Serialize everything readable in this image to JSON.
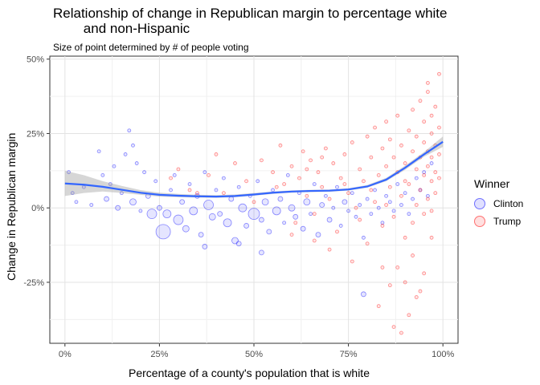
{
  "chart_data": {
    "type": "scatter",
    "title": "Relationship of change in Republican margin to percentage white\n        and non-Hispanic",
    "subtitle": "Size of point determined by # of people voting",
    "xlabel": "Percentage of a county's population that is white",
    "ylabel": "Change in Republican margin",
    "xlim": [
      -0.04,
      1.04
    ],
    "ylim": [
      -0.455,
      0.51
    ],
    "x_ticks": [
      0,
      0.25,
      0.5,
      0.75,
      1.0
    ],
    "x_tick_labels": [
      "0%",
      "25%",
      "50%",
      "75%",
      "100%"
    ],
    "y_ticks": [
      -0.25,
      0,
      0.25,
      0.5
    ],
    "y_tick_labels": [
      "-25%",
      "0%",
      "25%",
      "50%"
    ],
    "grid": true,
    "legend": {
      "title": "Winner",
      "position": "right",
      "entries": [
        {
          "name": "Clinton",
          "color": "#0000ff"
        },
        {
          "name": "Trump",
          "color": "#ff0000"
        }
      ]
    },
    "series": [
      {
        "name": "Clinton",
        "color": "#0000ff",
        "points": [
          [
            0.01,
            0.12,
            2
          ],
          [
            0.02,
            0.05,
            2
          ],
          [
            0.03,
            0.02,
            2
          ],
          [
            0.05,
            0.07,
            2
          ],
          [
            0.07,
            0.01,
            2
          ],
          [
            0.09,
            0.19,
            2
          ],
          [
            0.1,
            0.11,
            2
          ],
          [
            0.11,
            0.03,
            3
          ],
          [
            0.12,
            0.08,
            2
          ],
          [
            0.13,
            0.14,
            2
          ],
          [
            0.14,
            0.0,
            3
          ],
          [
            0.15,
            0.05,
            2
          ],
          [
            0.16,
            0.18,
            2
          ],
          [
            0.17,
            0.26,
            2
          ],
          [
            0.18,
            0.21,
            2
          ],
          [
            0.18,
            0.02,
            4
          ],
          [
            0.19,
            0.15,
            2
          ],
          [
            0.2,
            -0.01,
            2
          ],
          [
            0.21,
            0.12,
            2
          ],
          [
            0.22,
            0.04,
            3
          ],
          [
            0.23,
            -0.02,
            6
          ],
          [
            0.24,
            0.09,
            2
          ],
          [
            0.25,
            0.0,
            3
          ],
          [
            0.26,
            -0.08,
            9
          ],
          [
            0.27,
            -0.02,
            5
          ],
          [
            0.28,
            0.06,
            2
          ],
          [
            0.29,
            0.11,
            2
          ],
          [
            0.3,
            -0.04,
            6
          ],
          [
            0.31,
            0.02,
            3
          ],
          [
            0.32,
            -0.07,
            4
          ],
          [
            0.33,
            0.08,
            2
          ],
          [
            0.34,
            -0.01,
            5
          ],
          [
            0.35,
            0.04,
            3
          ],
          [
            0.36,
            -0.09,
            3
          ],
          [
            0.37,
            0.12,
            2
          ],
          [
            0.38,
            0.01,
            6
          ],
          [
            0.39,
            -0.03,
            4
          ],
          [
            0.4,
            0.06,
            2
          ],
          [
            0.41,
            -0.02,
            3
          ],
          [
            0.42,
            0.1,
            2
          ],
          [
            0.43,
            -0.05,
            5
          ],
          [
            0.44,
            0.03,
            3
          ],
          [
            0.45,
            -0.11,
            4
          ],
          [
            0.46,
            0.07,
            2
          ],
          [
            0.47,
            0.0,
            5
          ],
          [
            0.48,
            -0.06,
            3
          ],
          [
            0.49,
            0.04,
            2
          ],
          [
            0.5,
            -0.02,
            7
          ],
          [
            0.51,
            0.09,
            2
          ],
          [
            0.52,
            -0.04,
            3
          ],
          [
            0.53,
            0.02,
            4
          ],
          [
            0.54,
            -0.08,
            3
          ],
          [
            0.55,
            0.06,
            2
          ],
          [
            0.56,
            -0.01,
            5
          ],
          [
            0.57,
            0.03,
            3
          ],
          [
            0.58,
            -0.05,
            2
          ],
          [
            0.59,
            0.11,
            2
          ],
          [
            0.6,
            0.0,
            4
          ],
          [
            0.61,
            -0.03,
            3
          ],
          [
            0.62,
            0.05,
            2
          ],
          [
            0.63,
            -0.07,
            3
          ],
          [
            0.64,
            0.02,
            4
          ],
          [
            0.65,
            -0.02,
            2
          ],
          [
            0.66,
            0.08,
            2
          ],
          [
            0.67,
            -0.09,
            3
          ],
          [
            0.68,
            0.01,
            3
          ],
          [
            0.69,
            0.04,
            2
          ],
          [
            0.7,
            -0.04,
            3
          ],
          [
            0.71,
            0.0,
            2
          ],
          [
            0.72,
            0.07,
            2
          ],
          [
            0.73,
            -0.06,
            2
          ],
          [
            0.74,
            0.02,
            3
          ],
          [
            0.75,
            -0.01,
            2
          ],
          [
            0.76,
            0.05,
            2
          ],
          [
            0.77,
            -0.03,
            2
          ],
          [
            0.78,
            0.01,
            2
          ],
          [
            0.79,
            -0.1,
            2
          ],
          [
            0.8,
            0.03,
            2
          ],
          [
            0.81,
            -0.02,
            2
          ],
          [
            0.82,
            0.06,
            2
          ],
          [
            0.83,
            0.0,
            2
          ],
          [
            0.84,
            -0.05,
            2
          ],
          [
            0.85,
            0.04,
            2
          ],
          [
            0.86,
            0.02,
            2
          ],
          [
            0.87,
            -0.01,
            2
          ],
          [
            0.88,
            0.08,
            2
          ],
          [
            0.89,
            0.01,
            2
          ],
          [
            0.9,
            0.05,
            2
          ],
          [
            0.91,
            -0.02,
            2
          ],
          [
            0.92,
            0.03,
            2
          ],
          [
            0.93,
            0.1,
            2
          ],
          [
            0.94,
            0.06,
            2
          ],
          [
            0.95,
            0.12,
            2
          ],
          [
            0.96,
            0.04,
            2
          ],
          [
            0.97,
            0.15,
            2
          ],
          [
            0.52,
            -0.15,
            3
          ],
          [
            0.46,
            -0.12,
            3
          ],
          [
            0.37,
            -0.13,
            3
          ],
          [
            0.79,
            -0.29,
            3
          ]
        ]
      },
      {
        "name": "Trump",
        "color": "#ff0000",
        "points": [
          [
            0.3,
            0.13,
            2
          ],
          [
            0.35,
            0.05,
            2
          ],
          [
            0.4,
            0.18,
            2
          ],
          [
            0.45,
            0.15,
            2
          ],
          [
            0.5,
            0.02,
            2
          ],
          [
            0.52,
            0.16,
            2
          ],
          [
            0.55,
            0.12,
            2
          ],
          [
            0.57,
            0.21,
            2
          ],
          [
            0.58,
            0.08,
            2
          ],
          [
            0.6,
            0.14,
            2
          ],
          [
            0.61,
            -0.05,
            2
          ],
          [
            0.62,
            0.1,
            2
          ],
          [
            0.63,
            0.19,
            2
          ],
          [
            0.64,
            0.04,
            2
          ],
          [
            0.65,
            0.16,
            2
          ],
          [
            0.66,
            -0.02,
            2
          ],
          [
            0.67,
            0.12,
            2
          ],
          [
            0.68,
            0.07,
            2
          ],
          [
            0.69,
            0.2,
            2
          ],
          [
            0.7,
            0.03,
            2
          ],
          [
            0.71,
            0.15,
            2
          ],
          [
            0.72,
            -0.08,
            2
          ],
          [
            0.73,
            0.1,
            2
          ],
          [
            0.74,
            0.18,
            2
          ],
          [
            0.75,
            0.05,
            2
          ],
          [
            0.76,
            0.22,
            2
          ],
          [
            0.77,
            0.0,
            2
          ],
          [
            0.78,
            0.13,
            2
          ],
          [
            0.79,
            0.09,
            2
          ],
          [
            0.8,
            0.24,
            2
          ],
          [
            0.8,
            -0.12,
            2
          ],
          [
            0.81,
            0.17,
            2
          ],
          [
            0.82,
            0.02,
            2
          ],
          [
            0.82,
            0.27,
            2
          ],
          [
            0.83,
            0.11,
            2
          ],
          [
            0.84,
            0.2,
            2
          ],
          [
            0.84,
            -0.06,
            2
          ],
          [
            0.85,
            0.14,
            2
          ],
          [
            0.85,
            0.29,
            2
          ],
          [
            0.86,
            0.07,
            2
          ],
          [
            0.86,
            0.23,
            2
          ],
          [
            0.87,
            -0.03,
            2
          ],
          [
            0.87,
            0.17,
            2
          ],
          [
            0.88,
            0.12,
            2
          ],
          [
            0.88,
            0.31,
            2
          ],
          [
            0.89,
            0.04,
            2
          ],
          [
            0.89,
            0.21,
            2
          ],
          [
            0.9,
            0.15,
            2
          ],
          [
            0.9,
            -0.1,
            2
          ],
          [
            0.91,
            0.26,
            2
          ],
          [
            0.91,
            0.08,
            2
          ],
          [
            0.92,
            0.19,
            2
          ],
          [
            0.92,
            0.33,
            2
          ],
          [
            0.92,
            -0.05,
            2
          ],
          [
            0.93,
            0.13,
            2
          ],
          [
            0.93,
            0.24,
            2
          ],
          [
            0.94,
            0.06,
            2
          ],
          [
            0.94,
            0.17,
            2
          ],
          [
            0.94,
            0.36,
            2
          ],
          [
            0.95,
            0.11,
            2
          ],
          [
            0.95,
            0.22,
            2
          ],
          [
            0.95,
            -0.02,
            2
          ],
          [
            0.95,
            0.29,
            2
          ],
          [
            0.96,
            0.14,
            2
          ],
          [
            0.96,
            0.19,
            2
          ],
          [
            0.96,
            0.39,
            2
          ],
          [
            0.96,
            0.03,
            2
          ],
          [
            0.97,
            0.09,
            2
          ],
          [
            0.97,
            0.25,
            2
          ],
          [
            0.97,
            0.31,
            2
          ],
          [
            0.97,
            0.17,
            2
          ],
          [
            0.98,
            0.21,
            2
          ],
          [
            0.98,
            0.12,
            2
          ],
          [
            0.98,
            0.34,
            2
          ],
          [
            0.98,
            0.05,
            2
          ],
          [
            0.99,
            0.18,
            2
          ],
          [
            0.99,
            0.27,
            2
          ],
          [
            0.99,
            0.45,
            2
          ],
          [
            0.96,
            0.42,
            2
          ],
          [
            0.88,
            -0.2,
            2
          ],
          [
            0.9,
            -0.25,
            2
          ],
          [
            0.93,
            -0.3,
            2
          ],
          [
            0.95,
            -0.22,
            2
          ],
          [
            0.97,
            -0.1,
            2
          ],
          [
            0.91,
            -0.36,
            2
          ],
          [
            0.89,
            -0.42,
            2
          ],
          [
            0.87,
            -0.4,
            2
          ],
          [
            0.92,
            -0.16,
            2
          ],
          [
            0.94,
            -0.28,
            2
          ],
          [
            0.86,
            -0.26,
            2
          ],
          [
            0.84,
            -0.2,
            2
          ],
          [
            0.83,
            -0.33,
            2
          ],
          [
            0.76,
            -0.18,
            2
          ],
          [
            0.7,
            -0.14,
            2
          ],
          [
            0.66,
            -0.11,
            2
          ],
          [
            0.6,
            -0.09,
            2
          ],
          [
            0.56,
            0.07,
            2
          ],
          [
            0.48,
            0.09,
            2
          ],
          [
            0.42,
            0.05,
            2
          ],
          [
            0.38,
            0.11,
            2
          ],
          [
            0.33,
            0.06,
            2
          ],
          [
            0.28,
            0.1,
            2
          ],
          [
            0.9,
            0.09,
            2
          ],
          [
            0.93,
            0.01,
            2
          ],
          [
            0.97,
            -0.01,
            2
          ],
          [
            0.99,
            0.1,
            2
          ],
          [
            0.85,
            0.01,
            2
          ],
          [
            0.81,
            0.06,
            2
          ],
          [
            0.78,
            -0.04,
            2
          ],
          [
            0.74,
            0.08,
            2
          ],
          [
            0.68,
            0.17,
            2
          ],
          [
            0.64,
            0.13,
            2
          ]
        ]
      }
    ],
    "smooth": {
      "x": [
        0.0,
        0.05,
        0.1,
        0.15,
        0.2,
        0.25,
        0.3,
        0.35,
        0.4,
        0.45,
        0.5,
        0.55,
        0.6,
        0.65,
        0.7,
        0.75,
        0.8,
        0.85,
        0.9,
        0.95,
        1.0
      ],
      "y": [
        0.082,
        0.078,
        0.071,
        0.061,
        0.051,
        0.044,
        0.041,
        0.039,
        0.038,
        0.04,
        0.045,
        0.051,
        0.055,
        0.057,
        0.058,
        0.062,
        0.072,
        0.095,
        0.135,
        0.18,
        0.222
      ],
      "lower": [
        0.04,
        0.05,
        0.055,
        0.05,
        0.044,
        0.038,
        0.036,
        0.035,
        0.034,
        0.036,
        0.041,
        0.047,
        0.051,
        0.053,
        0.054,
        0.058,
        0.068,
        0.09,
        0.128,
        0.172,
        0.205
      ],
      "upper": [
        0.125,
        0.11,
        0.09,
        0.074,
        0.06,
        0.051,
        0.047,
        0.044,
        0.043,
        0.045,
        0.05,
        0.055,
        0.059,
        0.061,
        0.062,
        0.066,
        0.077,
        0.101,
        0.142,
        0.188,
        0.24
      ]
    }
  }
}
